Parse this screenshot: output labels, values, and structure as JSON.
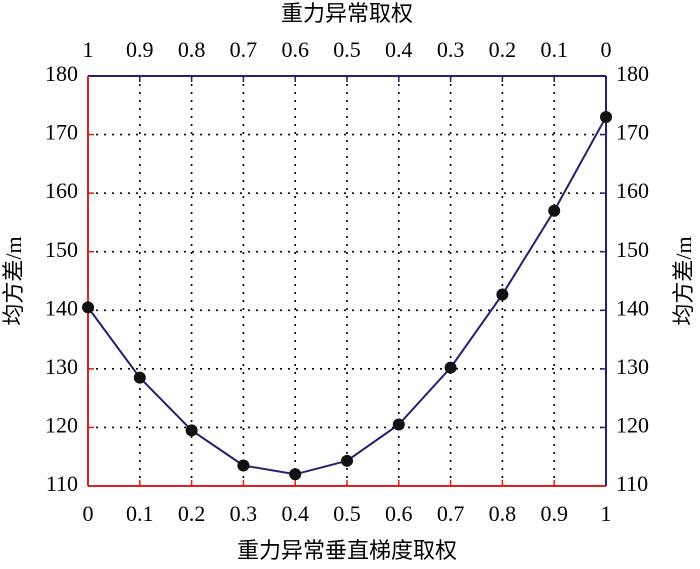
{
  "chart_data": {
    "type": "line",
    "x_label": "重力异常垂直梯度取权",
    "x2_label": "重力异常取权",
    "y_label": "均方差/m",
    "y2_label": "均方差/m",
    "x": [
      0,
      0.1,
      0.2,
      0.3,
      0.4,
      0.5,
      0.6,
      0.7,
      0.8,
      0.9,
      1
    ],
    "series": [
      {
        "color": "#2b1e6e",
        "marker_color": "#111111",
        "values": [
          140.5,
          128.5,
          119.5,
          113.5,
          112,
          114.3,
          120.5,
          130.2,
          142.7,
          157,
          173
        ]
      }
    ],
    "xlim": [
      0,
      1
    ],
    "xticks": [
      0,
      0.1,
      0.2,
      0.3,
      0.4,
      0.5,
      0.6,
      0.7,
      0.8,
      0.9,
      1
    ],
    "x2lim": [
      1,
      0
    ],
    "x2ticks": [
      1,
      0.9,
      0.8,
      0.7,
      0.6,
      0.5,
      0.4,
      0.3,
      0.2,
      0.1,
      0
    ],
    "ylim": [
      110,
      180
    ],
    "yticks": [
      110,
      120,
      130,
      140,
      150,
      160,
      170,
      180
    ],
    "y2lim": [
      110,
      180
    ],
    "y2ticks": [
      110,
      120,
      130,
      140,
      150,
      160,
      170,
      180
    ],
    "grid": true,
    "left_axis_color": "#e02020",
    "right_axis_color": "#2b1e6e"
  }
}
